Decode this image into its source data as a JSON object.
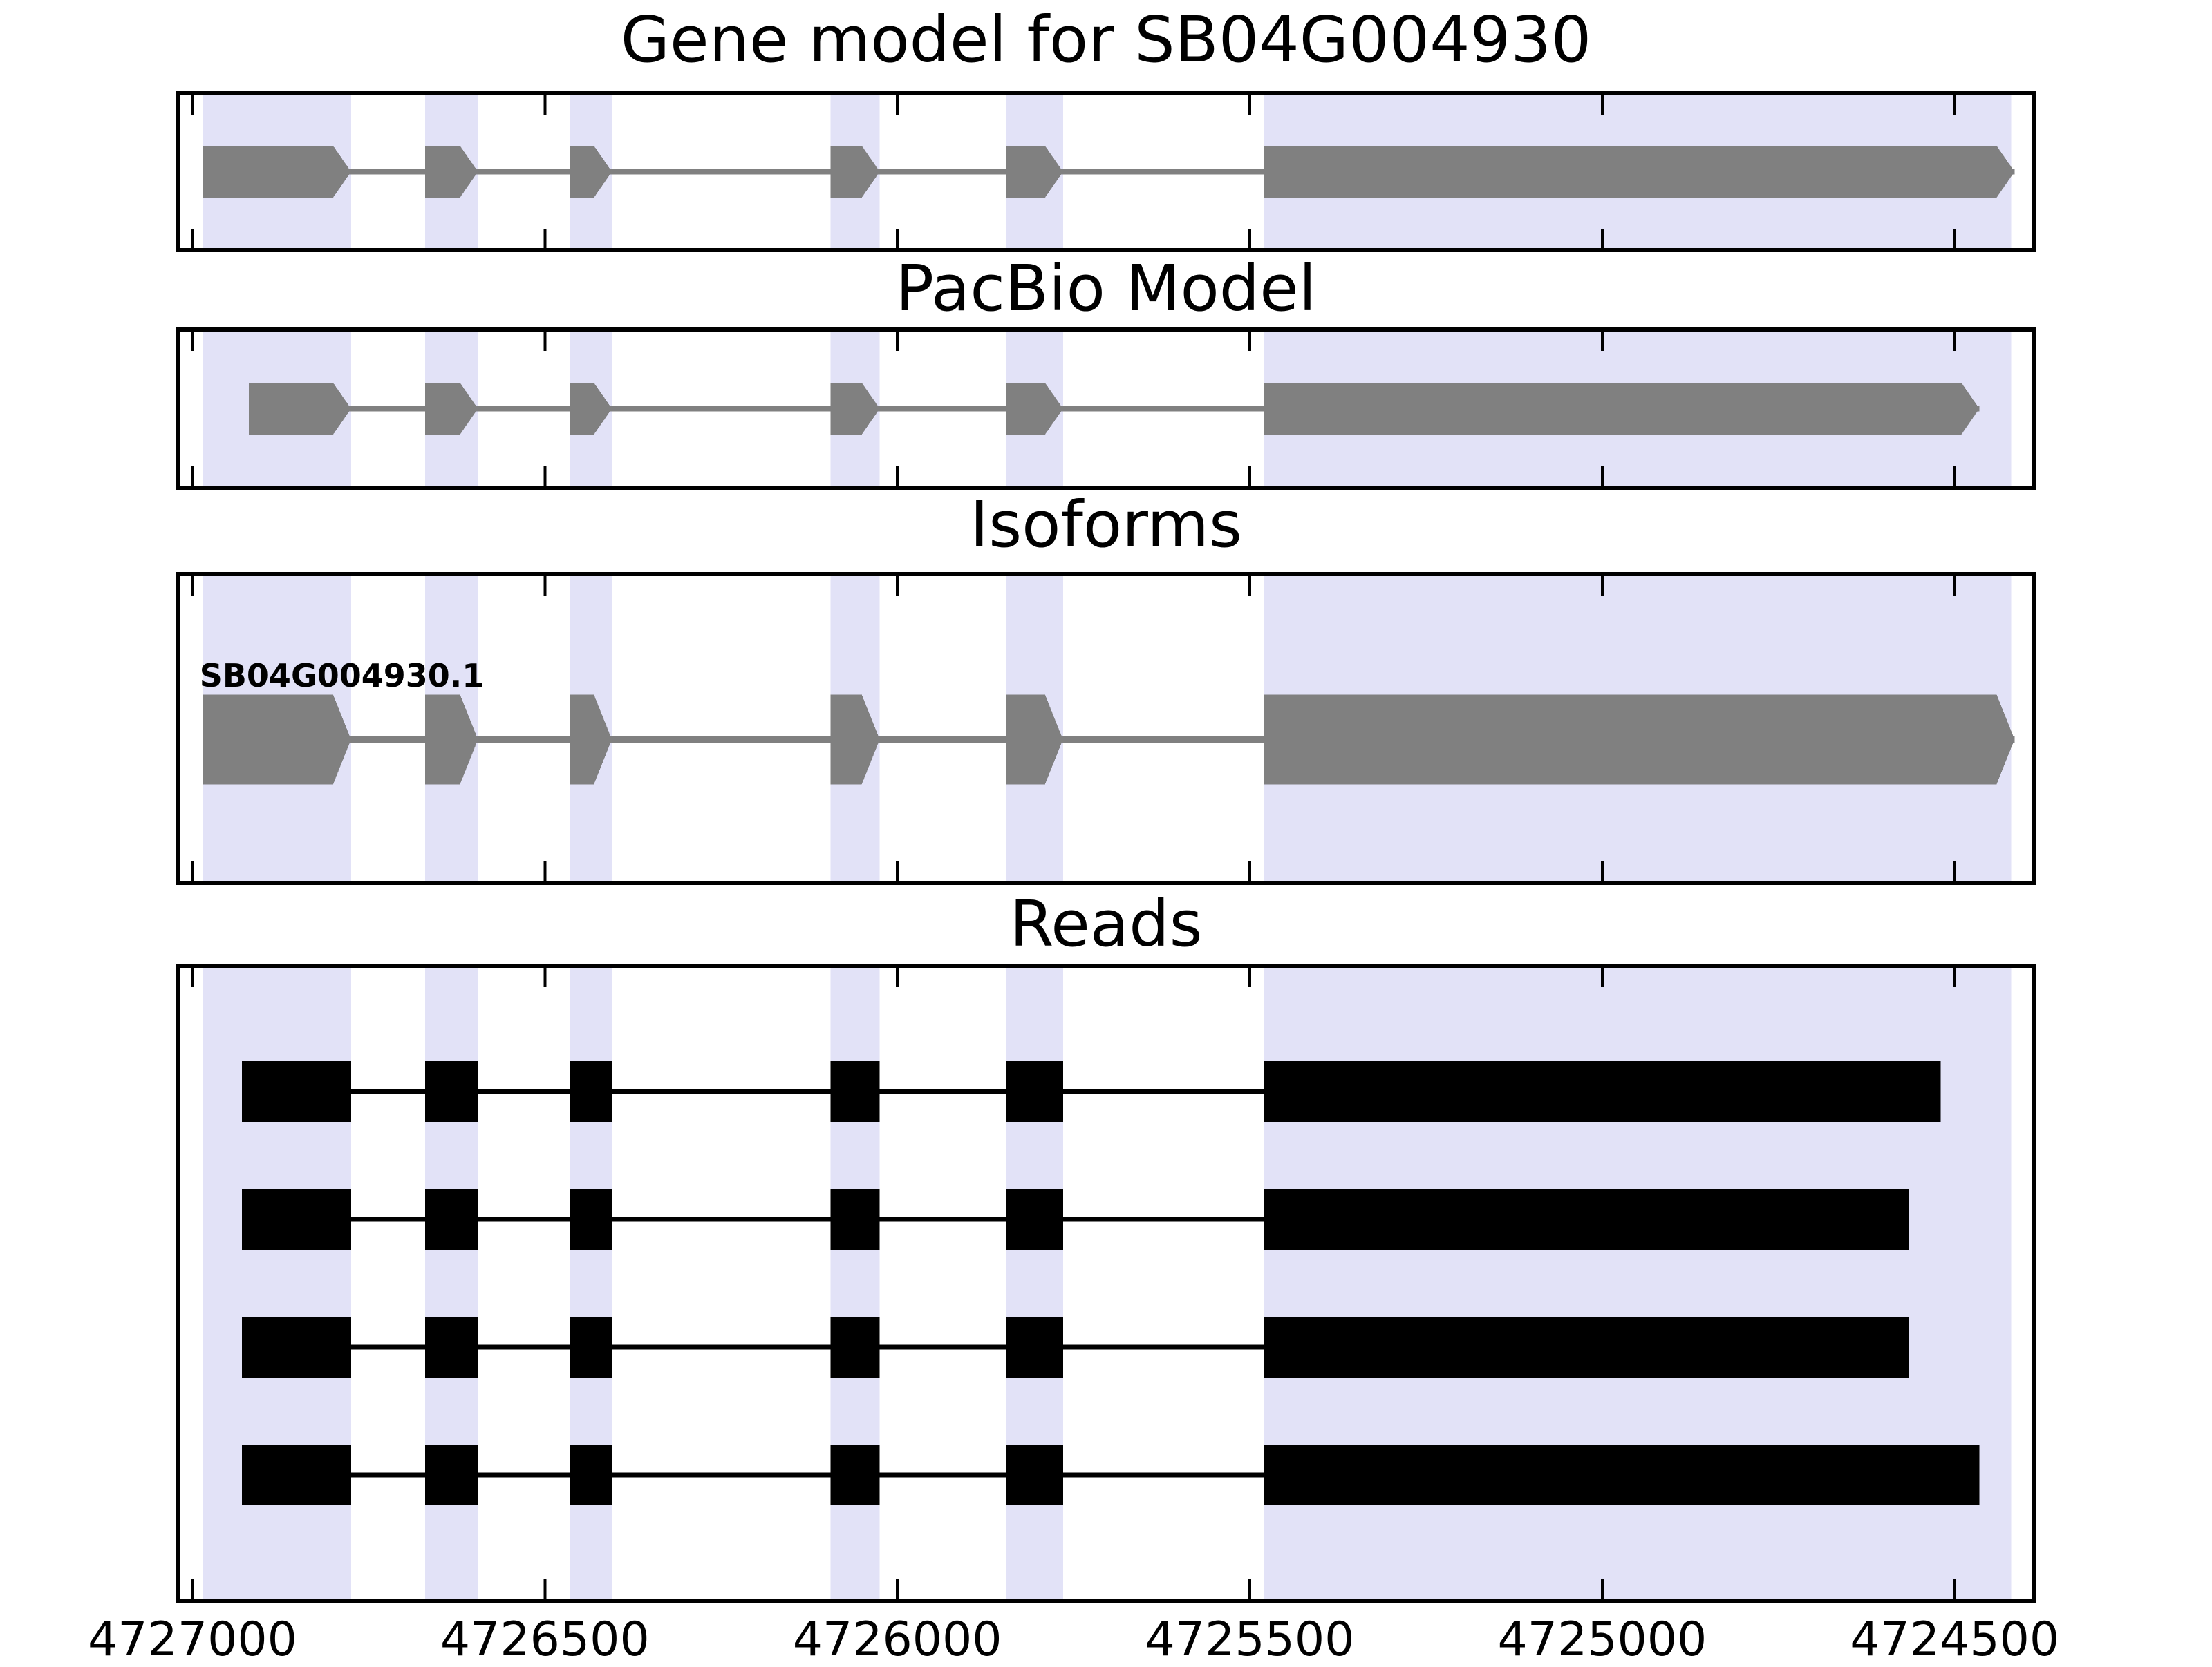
{
  "chart_data": {
    "type": "genome-tracks",
    "axis": {
      "xlim": [
        4727023,
        4724385
      ],
      "orientation": "reversed",
      "tick_positions": [
        4727000,
        4726500,
        4726000,
        4725500,
        4725000,
        4724500
      ],
      "tick_labels": [
        "4727000",
        "4726500",
        "4726000",
        "4725500",
        "4725000",
        "4724500"
      ]
    },
    "colors": {
      "highlight": "#e2e2f7",
      "gene_model": "#808080",
      "reads": "#000000",
      "spine": "#000000",
      "background": "#ffffff"
    },
    "highlight_regions": [
      [
        4726985,
        4726775
      ],
      [
        4726670,
        4726595
      ],
      [
        4726465,
        4726405
      ],
      [
        4726095,
        4726025
      ],
      [
        4725845,
        4725765
      ],
      [
        4725480,
        4724420
      ]
    ],
    "panels": [
      {
        "id": "gene-model",
        "title": "Gene model for SB04G004930",
        "tracks": [
          {
            "style": "arrow",
            "color": "#808080",
            "exons": [
              [
                4726985,
                4726775
              ],
              [
                4726670,
                4726595
              ],
              [
                4726465,
                4726405
              ],
              [
                4726095,
                4726025
              ],
              [
                4725845,
                4725765
              ],
              [
                4725480,
                4724415
              ]
            ]
          }
        ]
      },
      {
        "id": "pacbio-model",
        "title": "PacBio Model",
        "tracks": [
          {
            "style": "arrow",
            "color": "#808080",
            "exons": [
              [
                4726920,
                4726775
              ],
              [
                4726670,
                4726595
              ],
              [
                4726465,
                4726405
              ],
              [
                4726095,
                4726025
              ],
              [
                4725845,
                4725765
              ],
              [
                4725480,
                4724465
              ]
            ]
          }
        ]
      },
      {
        "id": "isoforms",
        "title": "Isoforms",
        "tracks": [
          {
            "style": "arrow",
            "color": "#808080",
            "label": "SB04G004930.1",
            "exons": [
              [
                4726985,
                4726775
              ],
              [
                4726670,
                4726595
              ],
              [
                4726465,
                4726405
              ],
              [
                4726095,
                4726025
              ],
              [
                4725845,
                4725765
              ],
              [
                4725480,
                4724415
              ]
            ]
          }
        ]
      },
      {
        "id": "reads",
        "title": "Reads",
        "tracks": [
          {
            "style": "box",
            "color": "#000000",
            "exons": [
              [
                4726930,
                4726775
              ],
              [
                4726670,
                4726595
              ],
              [
                4726465,
                4726405
              ],
              [
                4726095,
                4726025
              ],
              [
                4725845,
                4725765
              ],
              [
                4725480,
                4724520
              ]
            ]
          },
          {
            "style": "box",
            "color": "#000000",
            "exons": [
              [
                4726930,
                4726775
              ],
              [
                4726670,
                4726595
              ],
              [
                4726465,
                4726405
              ],
              [
                4726095,
                4726025
              ],
              [
                4725845,
                4725765
              ],
              [
                4725480,
                4724565
              ]
            ]
          },
          {
            "style": "box",
            "color": "#000000",
            "exons": [
              [
                4726930,
                4726775
              ],
              [
                4726670,
                4726595
              ],
              [
                4726465,
                4726405
              ],
              [
                4726095,
                4726025
              ],
              [
                4725845,
                4725765
              ],
              [
                4725480,
                4724565
              ]
            ]
          },
          {
            "style": "box",
            "color": "#000000",
            "exons": [
              [
                4726930,
                4726775
              ],
              [
                4726670,
                4726595
              ],
              [
                4726465,
                4726405
              ],
              [
                4726095,
                4726025
              ],
              [
                4725845,
                4725765
              ],
              [
                4725480,
                4724465
              ]
            ]
          }
        ]
      }
    ]
  }
}
